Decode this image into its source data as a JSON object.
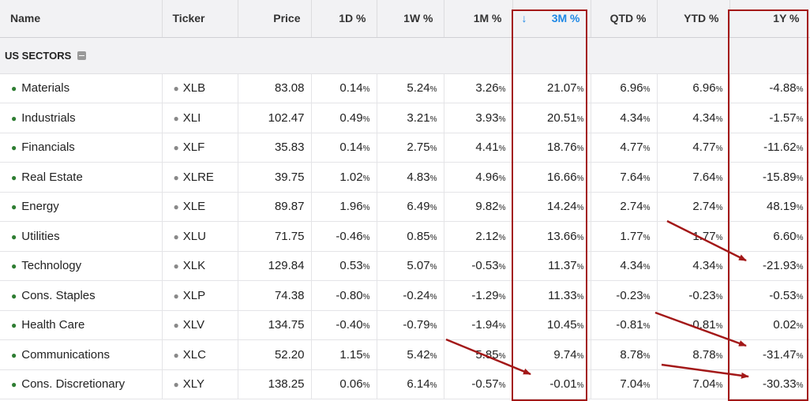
{
  "columns": [
    {
      "label": "Name"
    },
    {
      "label": "Ticker"
    },
    {
      "label": "Price"
    },
    {
      "label": "1D %"
    },
    {
      "label": "1W %"
    },
    {
      "label": "1M %"
    },
    {
      "label": "3M %",
      "sorted": "desc"
    },
    {
      "label": "QTD %"
    },
    {
      "label": "YTD %"
    },
    {
      "label": "1Y %"
    }
  ],
  "group": {
    "label": "US SECTORS"
  },
  "rows": [
    {
      "name": "Materials",
      "ticker": "XLB",
      "price": "83.08",
      "d1": "0.14",
      "w1": "5.24",
      "m1": "3.26",
      "m3": "21.07",
      "qtd": "6.96",
      "ytd": "6.96",
      "y1": "-4.88"
    },
    {
      "name": "Industrials",
      "ticker": "XLI",
      "price": "102.47",
      "d1": "0.49",
      "w1": "3.21",
      "m1": "3.93",
      "m3": "20.51",
      "qtd": "4.34",
      "ytd": "4.34",
      "y1": "-1.57"
    },
    {
      "name": "Financials",
      "ticker": "XLF",
      "price": "35.83",
      "d1": "0.14",
      "w1": "2.75",
      "m1": "4.41",
      "m3": "18.76",
      "qtd": "4.77",
      "ytd": "4.77",
      "y1": "-11.62"
    },
    {
      "name": "Real Estate",
      "ticker": "XLRE",
      "price": "39.75",
      "d1": "1.02",
      "w1": "4.83",
      "m1": "4.96",
      "m3": "16.66",
      "qtd": "7.64",
      "ytd": "7.64",
      "y1": "-15.89"
    },
    {
      "name": "Energy",
      "ticker": "XLE",
      "price": "89.87",
      "d1": "1.96",
      "w1": "6.49",
      "m1": "9.82",
      "m3": "14.24",
      "qtd": "2.74",
      "ytd": "2.74",
      "y1": "48.19"
    },
    {
      "name": "Utilities",
      "ticker": "XLU",
      "price": "71.75",
      "d1": "-0.46",
      "w1": "0.85",
      "m1": "2.12",
      "m3": "13.66",
      "qtd": "1.77",
      "ytd": "1.77",
      "y1": "6.60"
    },
    {
      "name": "Technology",
      "ticker": "XLK",
      "price": "129.84",
      "d1": "0.53",
      "w1": "5.07",
      "m1": "-0.53",
      "m3": "11.37",
      "qtd": "4.34",
      "ytd": "4.34",
      "y1": "-21.93"
    },
    {
      "name": "Cons. Staples",
      "ticker": "XLP",
      "price": "74.38",
      "d1": "-0.80",
      "w1": "-0.24",
      "m1": "-1.29",
      "m3": "11.33",
      "qtd": "-0.23",
      "ytd": "-0.23",
      "y1": "-0.53"
    },
    {
      "name": "Health Care",
      "ticker": "XLV",
      "price": "134.75",
      "d1": "-0.40",
      "w1": "-0.79",
      "m1": "-1.94",
      "m3": "10.45",
      "qtd": "-0.81",
      "ytd": "-0.81",
      "y1": "0.02"
    },
    {
      "name": "Communications",
      "ticker": "XLC",
      "price": "52.20",
      "d1": "1.15",
      "w1": "5.42",
      "m1": "5.85",
      "m3": "9.74",
      "qtd": "8.78",
      "ytd": "8.78",
      "y1": "-31.47"
    },
    {
      "name": "Cons. Discretionary",
      "ticker": "XLY",
      "price": "138.25",
      "d1": "0.06",
      "w1": "6.14",
      "m1": "-0.57",
      "m3": "-0.01",
      "qtd": "7.04",
      "ytd": "7.04",
      "y1": "-30.33"
    }
  ],
  "pct_suffix": "%",
  "colors": {
    "positive": "#2a7a32",
    "negative": "#d84040",
    "sort_accent": "#1e88e5",
    "annotation": "#a31818"
  }
}
